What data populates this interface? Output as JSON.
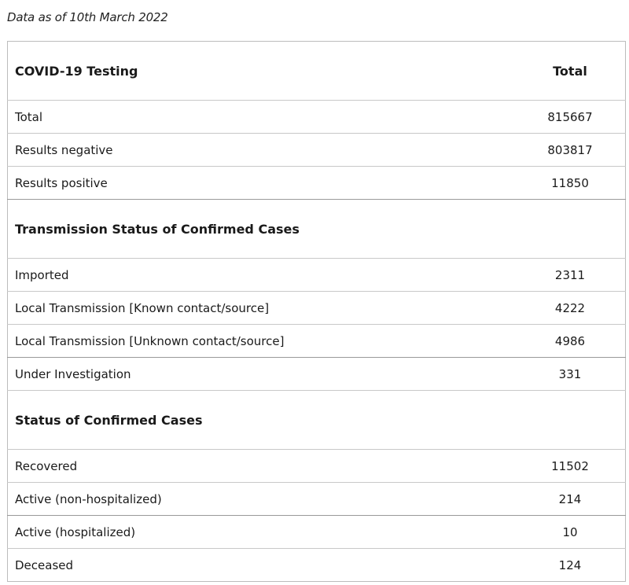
{
  "as_of": "Data as of 10th March 2022",
  "table": {
    "header": {
      "label": "COVID-19 Testing",
      "value": "Total"
    },
    "testing_rows": [
      {
        "label": "Total",
        "value": "815667"
      },
      {
        "label": "Results negative",
        "value": "803817"
      },
      {
        "label": "Results positive",
        "value": "11850"
      }
    ],
    "transmission_section": {
      "title": "Transmission Status of Confirmed Cases",
      "rows": [
        {
          "label": "Imported",
          "value": "2311"
        },
        {
          "label": "Local Transmission [Known contact/source]",
          "value": "4222"
        },
        {
          "label": "Local Transmission [Unknown contact/source]",
          "value": "4986"
        },
        {
          "label": "Under Investigation",
          "value": "331"
        }
      ]
    },
    "status_section": {
      "title": "Status of Confirmed Cases",
      "rows": [
        {
          "label": "Recovered",
          "value": "11502"
        },
        {
          "label": "Active (non-hospitalized)",
          "value": "214"
        },
        {
          "label": "Active (hospitalized)",
          "value": "10"
        },
        {
          "label": "Deceased",
          "value": "124"
        }
      ]
    }
  }
}
